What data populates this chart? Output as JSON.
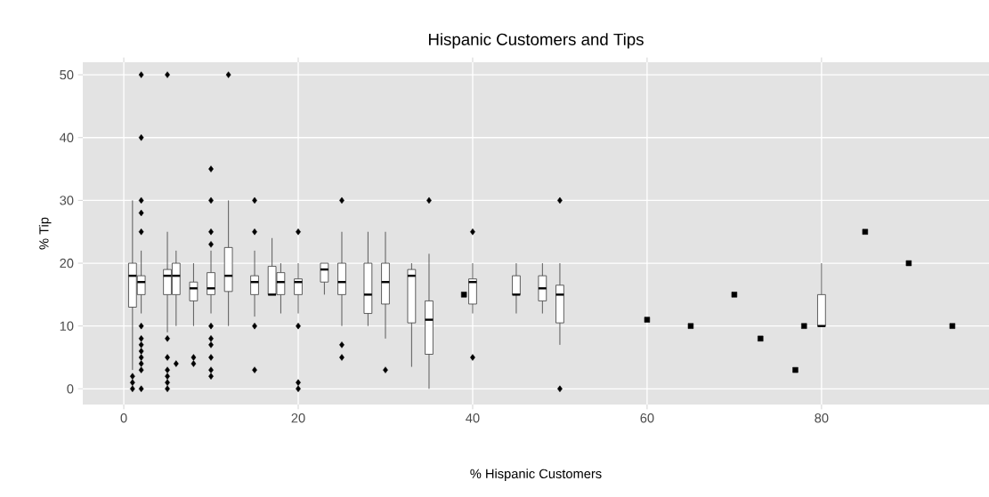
{
  "chart_data": {
    "type": "box",
    "title": "Hispanic Customers and Tips",
    "xlabel": "% Hispanic Customers",
    "ylabel": "% Tip",
    "x": [
      1,
      2,
      5,
      6,
      8,
      10,
      12,
      15,
      17,
      18,
      20,
      23,
      25,
      28,
      30,
      33,
      35,
      40,
      45,
      48,
      50,
      80
    ],
    "boxes": [
      {
        "low": 3,
        "q1": 13,
        "median": 18,
        "q3": 20,
        "high": 30,
        "outliers": [
          2,
          1,
          0
        ]
      },
      {
        "low": 12,
        "q1": 15,
        "median": 17,
        "q3": 18,
        "high": 22,
        "outliers": [
          50,
          40,
          30,
          28,
          25,
          10,
          8,
          7,
          6,
          5,
          4,
          3,
          0
        ]
      },
      {
        "low": 9,
        "q1": 15,
        "median": 18,
        "q3": 19,
        "high": 25,
        "outliers": [
          50,
          8,
          5,
          3,
          2,
          1,
          0
        ]
      },
      {
        "low": 10,
        "q1": 15,
        "median": 18,
        "q3": 20,
        "high": 22,
        "outliers": [
          4
        ]
      },
      {
        "low": 10,
        "q1": 14,
        "median": 16,
        "q3": 17,
        "high": 20,
        "outliers": [
          5,
          4
        ]
      },
      {
        "low": 12,
        "q1": 15,
        "median": 16,
        "q3": 18.5,
        "high": 22,
        "outliers": [
          35,
          30,
          25,
          23,
          10,
          8,
          7,
          5,
          3,
          2
        ]
      },
      {
        "low": 10,
        "q1": 15.5,
        "median": 18,
        "q3": 22.5,
        "high": 30,
        "outliers": [
          50
        ]
      },
      {
        "low": 11.5,
        "q1": 15,
        "median": 17,
        "q3": 18,
        "high": 22,
        "outliers": [
          30,
          25,
          10,
          3
        ]
      },
      {
        "low": 15,
        "q1": 15,
        "median": 15,
        "q3": 19.5,
        "high": 24
      },
      {
        "low": 12,
        "q1": 15,
        "median": 17,
        "q3": 18.5,
        "high": 20
      },
      {
        "low": 12,
        "q1": 15,
        "median": 17,
        "q3": 17.5,
        "high": 20,
        "outliers": [
          25,
          10,
          1,
          0
        ]
      },
      {
        "low": 15,
        "q1": 17,
        "median": 19,
        "q3": 20,
        "high": 20
      },
      {
        "low": 10,
        "q1": 15,
        "median": 17,
        "q3": 20,
        "high": 25,
        "outliers": [
          30,
          7,
          5
        ]
      },
      {
        "low": 10,
        "q1": 12,
        "median": 15,
        "q3": 20,
        "high": 25
      },
      {
        "low": 8,
        "q1": 13.5,
        "median": 17,
        "q3": 20,
        "high": 25,
        "outliers": [
          3
        ]
      },
      {
        "low": 3.5,
        "q1": 10.5,
        "median": 18,
        "q3": 19,
        "high": 20
      },
      {
        "low": 0,
        "q1": 5.5,
        "median": 11,
        "q3": 14,
        "high": 21.5,
        "outliers": [
          30
        ]
      },
      {
        "low": 12,
        "q1": 13.5,
        "median": 17,
        "q3": 17.5,
        "high": 20,
        "outliers": [
          25,
          5
        ]
      },
      {
        "low": 12,
        "q1": 15,
        "median": 15,
        "q3": 18,
        "high": 20
      },
      {
        "low": 12,
        "q1": 14,
        "median": 16,
        "q3": 18,
        "high": 20
      },
      {
        "low": 7,
        "q1": 10.5,
        "median": 15,
        "q3": 16.5,
        "high": 20,
        "outliers": [
          30,
          0
        ]
      },
      {
        "low": 10,
        "q1": 10,
        "median": 10,
        "q3": 15,
        "high": 20
      }
    ],
    "series": [
      {
        "type": "scatter",
        "marker": "square",
        "color": "#000000",
        "x": [
          39,
          60,
          65,
          70,
          73,
          77,
          78,
          85,
          90,
          95
        ],
        "values": [
          15,
          11,
          10,
          15,
          8,
          3,
          10,
          25,
          20,
          10
        ]
      }
    ],
    "color": "#ffffff",
    "xlim": [
      -4.7,
      99.2
    ],
    "ylim": [
      -2.5,
      52
    ],
    "xticks": [
      0,
      20,
      40,
      60,
      80
    ],
    "yticks": [
      0,
      10,
      20,
      30,
      40,
      50
    ],
    "grid": true,
    "marker": "diamond"
  }
}
